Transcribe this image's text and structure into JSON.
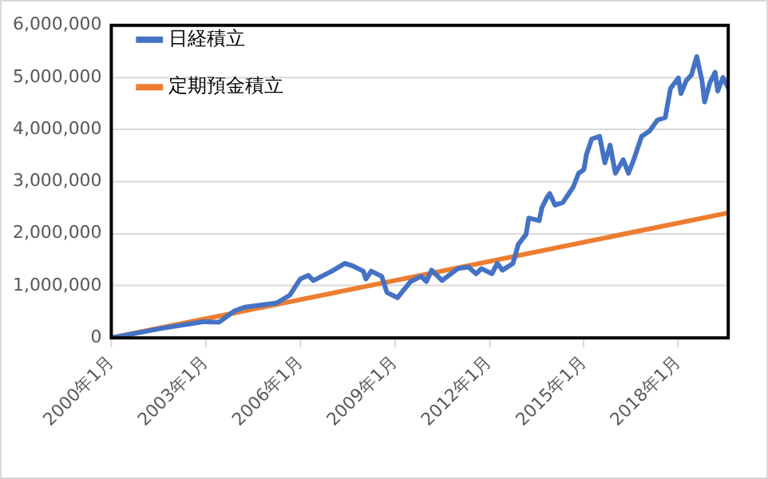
{
  "chart_data": {
    "type": "line",
    "x": [
      "2000-01",
      "2001-08",
      "2002-12",
      "2003-06",
      "2003-12",
      "2004-04",
      "2005-04",
      "2005-09",
      "2006-01",
      "2006-04",
      "2006-06",
      "2007-01",
      "2007-06",
      "2007-09",
      "2008-01",
      "2008-02",
      "2008-04",
      "2008-08",
      "2008-10",
      "2009-02",
      "2009-07",
      "2009-11",
      "2010-01",
      "2010-03",
      "2010-07",
      "2011-01",
      "2011-05",
      "2011-08",
      "2011-10",
      "2012-02",
      "2012-04",
      "2012-06",
      "2012-10",
      "2012-12",
      "2013-03",
      "2013-04",
      "2013-08",
      "2013-09",
      "2013-11",
      "2013-12",
      "2014-02",
      "2014-05",
      "2014-09",
      "2014-11",
      "2015-01",
      "2015-02",
      "2015-04",
      "2015-07",
      "2015-09",
      "2015-11",
      "2016-01",
      "2016-04",
      "2016-06",
      "2016-08",
      "2016-11",
      "2017-02",
      "2017-05",
      "2017-08",
      "2017-10",
      "2018-01",
      "2018-02",
      "2018-04",
      "2018-06",
      "2018-08",
      "2018-10",
      "2018-11",
      "2019-01",
      "2019-03",
      "2019-04",
      "2019-06",
      "2019-08"
    ],
    "series": [
      {
        "name": "日経積立",
        "color": "#4472c4",
        "values": [
          0,
          180000,
          310000,
          300000,
          520000,
          590000,
          670000,
          820000,
          1130000,
          1200000,
          1100000,
          1280000,
          1430000,
          1380000,
          1280000,
          1130000,
          1280000,
          1180000,
          870000,
          770000,
          1080000,
          1180000,
          1080000,
          1300000,
          1100000,
          1330000,
          1360000,
          1230000,
          1330000,
          1230000,
          1430000,
          1300000,
          1430000,
          1790000,
          1990000,
          2300000,
          2250000,
          2500000,
          2700000,
          2770000,
          2550000,
          2600000,
          2900000,
          3160000,
          3230000,
          3520000,
          3820000,
          3870000,
          3360000,
          3700000,
          3160000,
          3420000,
          3160000,
          3420000,
          3870000,
          3970000,
          4180000,
          4230000,
          4790000,
          4990000,
          4690000,
          4940000,
          5050000,
          5400000,
          4940000,
          4530000,
          4900000,
          5100000,
          4740000,
          5000000,
          4800000
        ]
      },
      {
        "name": "定期預金積立",
        "color": "#ed7d31",
        "x": [
          "2000-01",
          "2009-01",
          "2019-08"
        ],
        "values": [
          0,
          1100000,
          2400000
        ]
      }
    ],
    "xlim": [
      "2000-01",
      "2019-08"
    ],
    "xticks": [
      {
        "value": "2000-01",
        "label": "2000年1月"
      },
      {
        "value": "2003-01",
        "label": "2003年1月"
      },
      {
        "value": "2006-01",
        "label": "2006年1月"
      },
      {
        "value": "2009-01",
        "label": "2009年1月"
      },
      {
        "value": "2012-01",
        "label": "2012年1月"
      },
      {
        "value": "2015-01",
        "label": "2015年1月"
      },
      {
        "value": "2018-01",
        "label": "2018年1月"
      }
    ],
    "ylim": [
      0,
      6000000
    ],
    "yticks": [
      {
        "value": 0,
        "label": "0"
      },
      {
        "value": 1000000,
        "label": "1,000,000"
      },
      {
        "value": 2000000,
        "label": "2,000,000"
      },
      {
        "value": 3000000,
        "label": "3,000,000"
      },
      {
        "value": 4000000,
        "label": "4,000,000"
      },
      {
        "value": 5000000,
        "label": "5,000,000"
      },
      {
        "value": 6000000,
        "label": "6,000,000"
      }
    ],
    "grid": "y",
    "legend": "top left",
    "marker": "none",
    "line_style": "solid"
  }
}
